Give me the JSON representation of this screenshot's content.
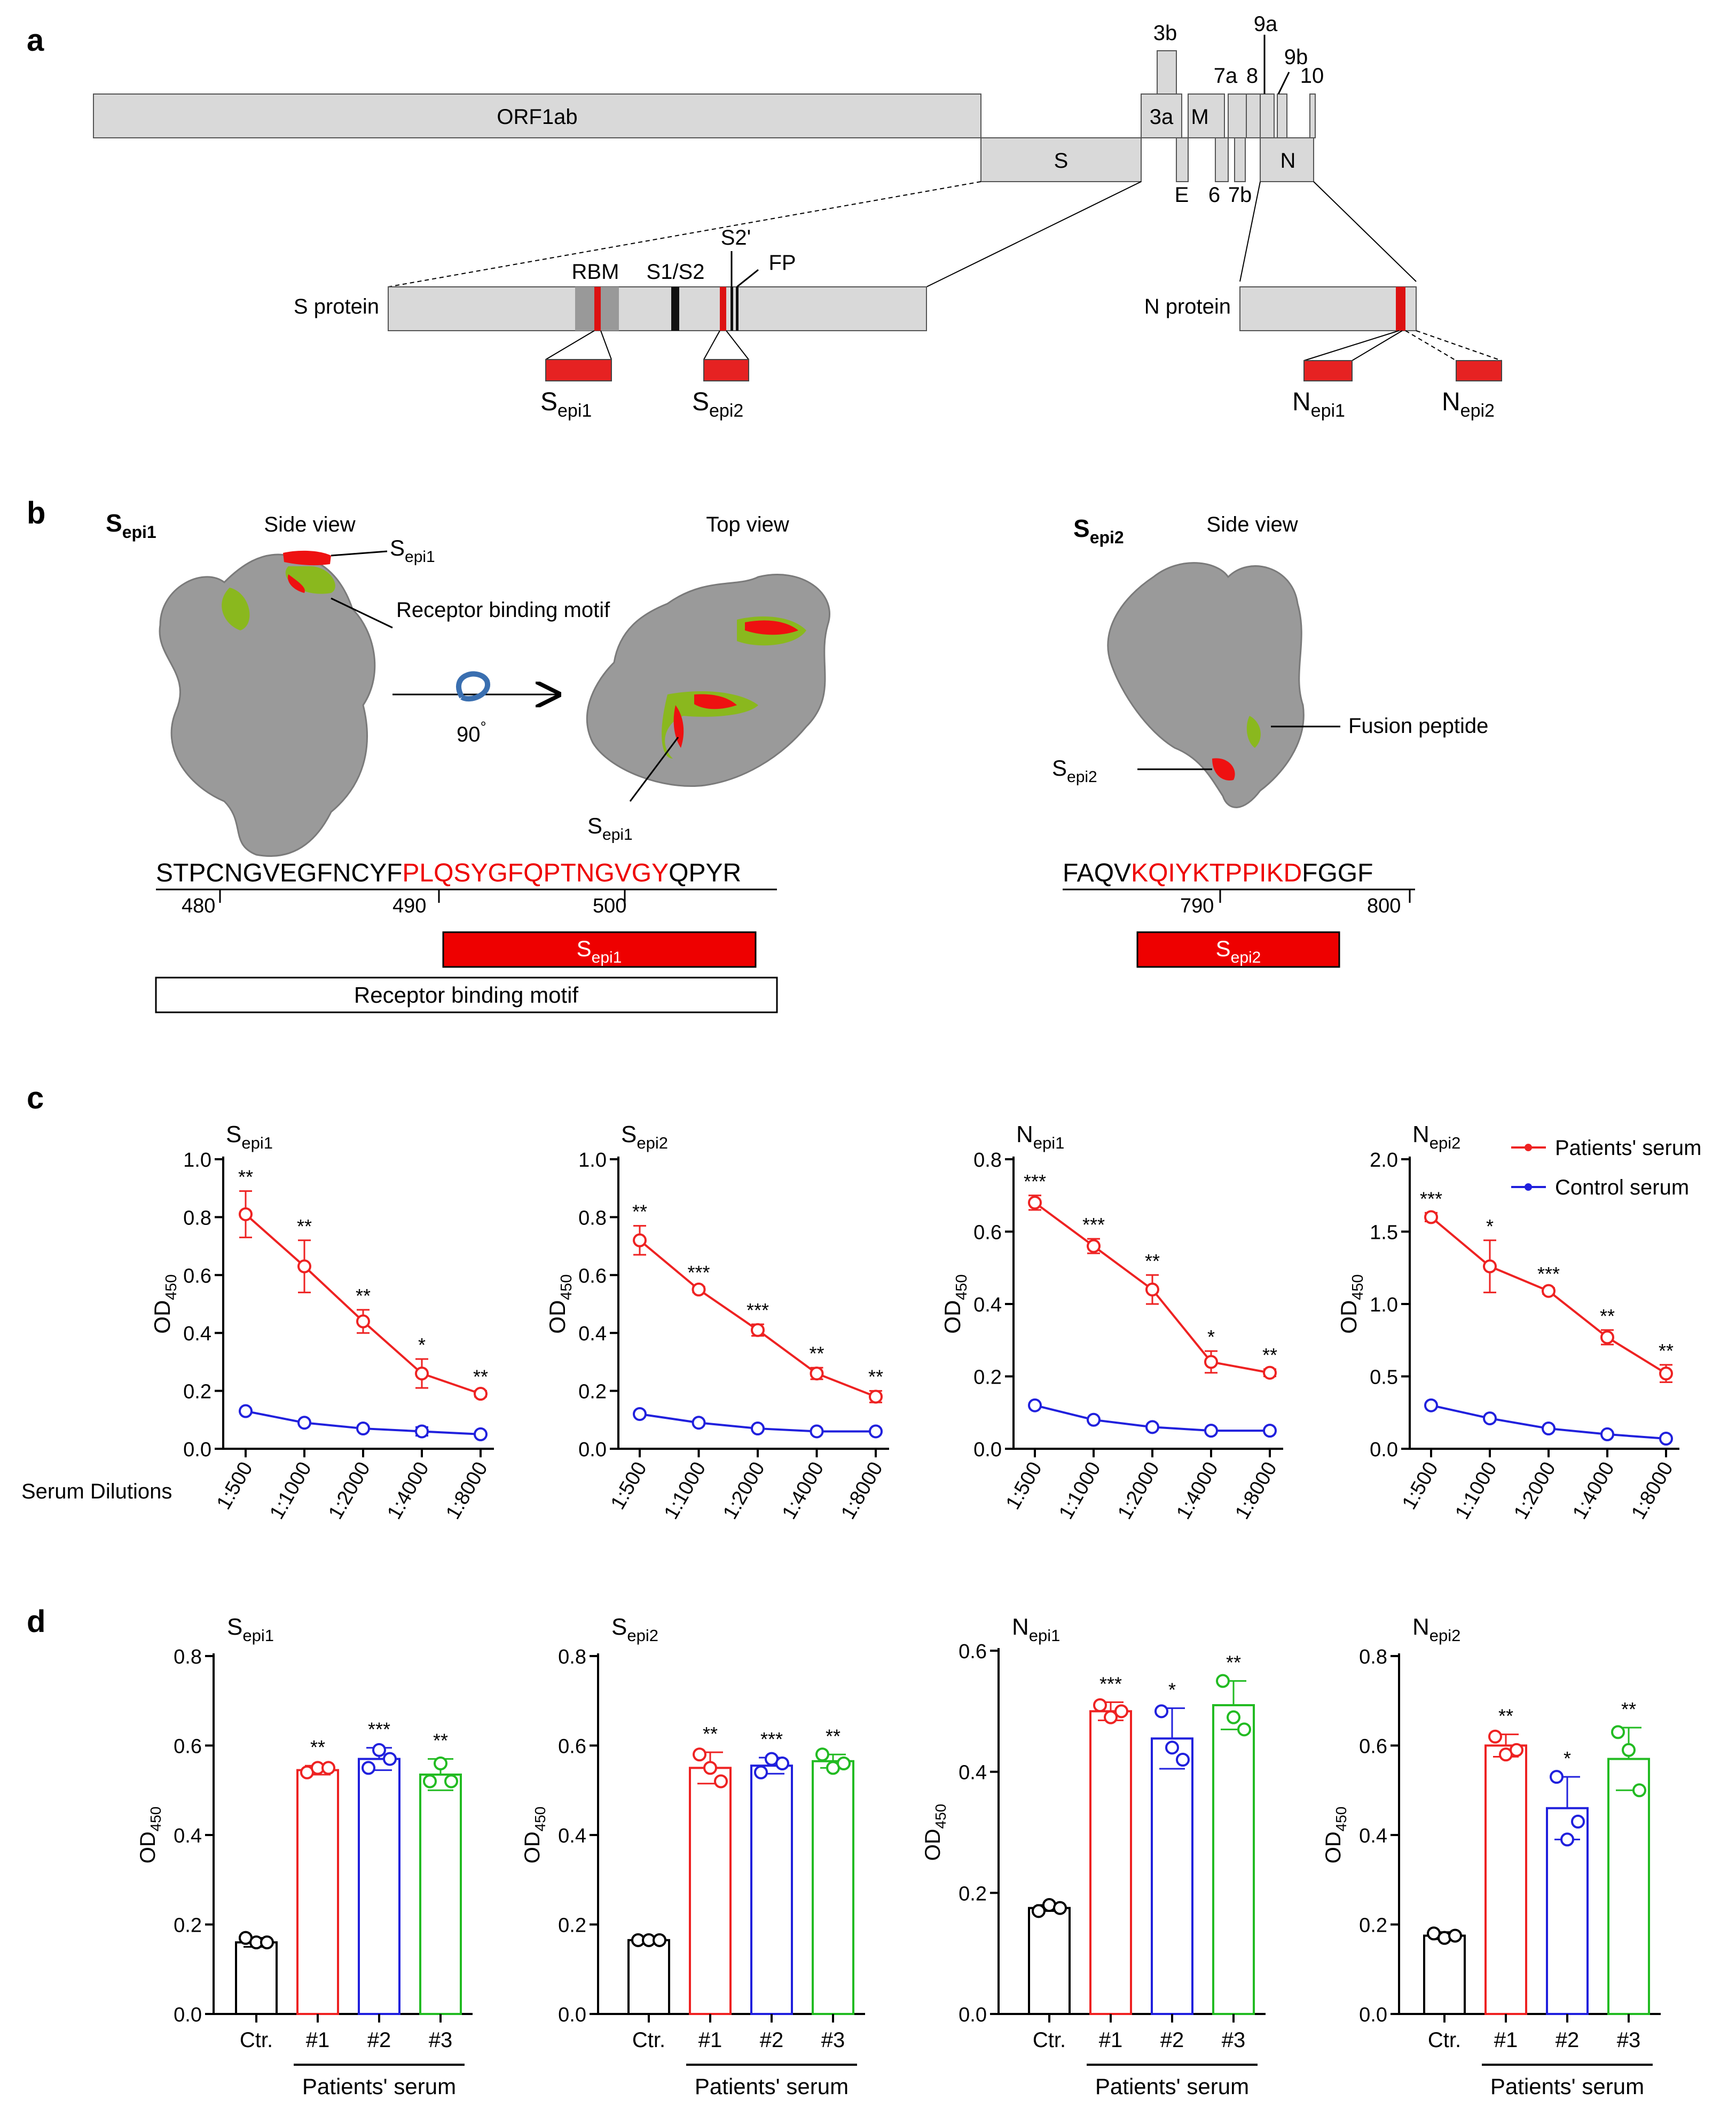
{
  "panel_labels": {
    "a": "a",
    "b": "b",
    "c": "c",
    "d": "d"
  },
  "genome": {
    "genes": [
      "ORF1ab",
      "S",
      "3a",
      "3b",
      "M",
      "7a",
      "8",
      "9a",
      "9b",
      "10",
      "E",
      "6",
      "7b",
      "N"
    ],
    "s_protein": {
      "label": "S protein",
      "features": [
        "RBM",
        "S1/S2",
        "S2'",
        "FP"
      ],
      "epitopes": [
        {
          "main": "S",
          "sub": "epi1"
        },
        {
          "main": "S",
          "sub": "epi2"
        }
      ]
    },
    "n_protein": {
      "label": "N protein",
      "epitopes": [
        {
          "main": "N",
          "sub": "epi1"
        },
        {
          "main": "N",
          "sub": "epi2"
        }
      ]
    }
  },
  "structure": {
    "sepi1_title": {
      "main": "S",
      "sub": "epi1"
    },
    "sepi2_title": {
      "main": "S",
      "sub": "epi2"
    },
    "side_view": "Side view",
    "top_view": "Top view",
    "rbm_label": "Receptor binding motif",
    "rotation": "90",
    "degree": "°",
    "fusion_peptide": "Fusion peptide",
    "callout_epi1": {
      "main": "S",
      "sub": "epi1"
    },
    "callout_epi2": {
      "main": "S",
      "sub": "epi2"
    }
  },
  "sequences": {
    "s1": {
      "prefix": "STPCNGVEGFNCYF",
      "epitope": "PLQSYGFQPTNGVGY",
      "suffix": "QPYR",
      "ticks": [
        "480",
        "490",
        "500"
      ],
      "epitope_bar": {
        "main": "S",
        "sub": "epi1"
      },
      "rbm_bar": "Receptor binding motif"
    },
    "s2": {
      "prefix": "FAQV",
      "epitope": "KQIYKTPPIKD",
      "suffix": "FGGF",
      "ticks": [
        "790",
        "800"
      ],
      "epitope_bar": {
        "main": "S",
        "sub": "epi2"
      }
    }
  },
  "colors": {
    "patients": "#ee2222",
    "control": "#2020dd",
    "p1": "#ee2222",
    "p2": "#2020dd",
    "p3": "#22bb22",
    "ctr": "#000000",
    "epitope": "#ee0000",
    "rbm_green": "#8ab81e",
    "protein_gray": "#9a9a9a"
  },
  "chart_data": [
    {
      "type": "line",
      "title": {
        "main": "S",
        "sub": "epi1"
      },
      "ylabel": {
        "main": "OD",
        "sub": "450"
      },
      "xlabel": "Serum Dilutions",
      "categories": [
        "1:500",
        "1:1000",
        "1:2000",
        "1:4000",
        "1:8000"
      ],
      "ylim": [
        0,
        1.0
      ],
      "yticks": [
        "0.0",
        "0.2",
        "0.4",
        "0.6",
        "0.8",
        "1.0"
      ],
      "series": [
        {
          "name": "Patients' serum",
          "values": [
            0.81,
            0.63,
            0.44,
            0.26,
            0.19
          ],
          "errors": [
            0.08,
            0.09,
            0.04,
            0.05,
            0.01
          ]
        },
        {
          "name": "Control serum",
          "values": [
            0.13,
            0.09,
            0.07,
            0.06,
            0.05
          ],
          "errors": [
            0.005,
            0.005,
            0.005,
            0.015,
            0.005
          ]
        }
      ],
      "significance": [
        "**",
        "**",
        "**",
        "*",
        "**"
      ]
    },
    {
      "type": "line",
      "title": {
        "main": "S",
        "sub": "epi2"
      },
      "ylabel": {
        "main": "OD",
        "sub": "450"
      },
      "categories": [
        "1:500",
        "1:1000",
        "1:2000",
        "1:4000",
        "1:8000"
      ],
      "ylim": [
        0,
        1.0
      ],
      "yticks": [
        "0.0",
        "0.2",
        "0.4",
        "0.6",
        "0.8",
        "1.0"
      ],
      "series": [
        {
          "name": "Patients' serum",
          "values": [
            0.72,
            0.55,
            0.41,
            0.26,
            0.18
          ],
          "errors": [
            0.05,
            0.01,
            0.02,
            0.02,
            0.02
          ]
        },
        {
          "name": "Control serum",
          "values": [
            0.12,
            0.09,
            0.07,
            0.06,
            0.06
          ],
          "errors": [
            0.005,
            0.005,
            0.005,
            0.005,
            0.005
          ]
        }
      ],
      "significance": [
        "**",
        "***",
        "***",
        "**",
        "**"
      ]
    },
    {
      "type": "line",
      "title": {
        "main": "N",
        "sub": "epi1"
      },
      "ylabel": {
        "main": "OD",
        "sub": "450"
      },
      "categories": [
        "1:500",
        "1:1000",
        "1:2000",
        "1:4000",
        "1:8000"
      ],
      "ylim": [
        0,
        0.8
      ],
      "yticks": [
        "0.0",
        "0.2",
        "0.4",
        "0.6",
        "0.8"
      ],
      "series": [
        {
          "name": "Patients' serum",
          "values": [
            0.68,
            0.56,
            0.44,
            0.24,
            0.21
          ],
          "errors": [
            0.02,
            0.02,
            0.04,
            0.03,
            0.01
          ]
        },
        {
          "name": "Control serum",
          "values": [
            0.12,
            0.08,
            0.06,
            0.05,
            0.05
          ],
          "errors": [
            0.005,
            0.005,
            0.005,
            0.005,
            0.005
          ]
        }
      ],
      "significance": [
        "***",
        "***",
        "**",
        "*",
        "**"
      ]
    },
    {
      "type": "line",
      "title": {
        "main": "N",
        "sub": "epi2"
      },
      "ylabel": {
        "main": "OD",
        "sub": "450"
      },
      "categories": [
        "1:500",
        "1:1000",
        "1:2000",
        "1:4000",
        "1:8000"
      ],
      "ylim": [
        0,
        2.0
      ],
      "yticks": [
        "0.0",
        "0.5",
        "1.0",
        "1.5",
        "2.0"
      ],
      "series": [
        {
          "name": "Patients' serum",
          "values": [
            1.6,
            1.26,
            1.09,
            0.77,
            0.52
          ],
          "errors": [
            0.03,
            0.18,
            0.02,
            0.05,
            0.06
          ]
        },
        {
          "name": "Control serum",
          "values": [
            0.3,
            0.21,
            0.14,
            0.1,
            0.07
          ],
          "errors": [
            0.01,
            0.01,
            0.01,
            0.01,
            0.01
          ]
        }
      ],
      "significance": [
        "***",
        "*",
        "***",
        "**",
        "**"
      ],
      "legend": [
        "Patients' serum",
        "Control serum"
      ]
    },
    {
      "type": "bar",
      "title": {
        "main": "S",
        "sub": "epi1"
      },
      "ylabel": {
        "main": "OD",
        "sub": "450"
      },
      "categories": [
        "Ctr.",
        "#1",
        "#2",
        "#3"
      ],
      "group_label": "Patients' serum",
      "ylim": [
        0,
        0.8
      ],
      "yticks": [
        "0.0",
        "0.2",
        "0.4",
        "0.6",
        "0.8"
      ],
      "values": [
        0.16,
        0.545,
        0.57,
        0.535
      ],
      "errors": [
        0.01,
        0.01,
        0.025,
        0.035
      ],
      "points": [
        [
          0.17,
          0.16,
          0.16
        ],
        [
          0.54,
          0.55,
          0.55
        ],
        [
          0.55,
          0.59,
          0.57
        ],
        [
          0.52,
          0.56,
          0.52
        ]
      ],
      "significance": [
        "",
        "**",
        "***",
        "**"
      ]
    },
    {
      "type": "bar",
      "title": {
        "main": "S",
        "sub": "epi2"
      },
      "ylabel": {
        "main": "OD",
        "sub": "450"
      },
      "categories": [
        "Ctr.",
        "#1",
        "#2",
        "#3"
      ],
      "group_label": "Patients' serum",
      "ylim": [
        0,
        0.8
      ],
      "yticks": [
        "0.0",
        "0.2",
        "0.4",
        "0.6",
        "0.8"
      ],
      "values": [
        0.165,
        0.55,
        0.555,
        0.565
      ],
      "errors": [
        0.003,
        0.035,
        0.018,
        0.015
      ],
      "points": [
        [
          0.165,
          0.165,
          0.165
        ],
        [
          0.58,
          0.55,
          0.52
        ],
        [
          0.54,
          0.57,
          0.56
        ],
        [
          0.58,
          0.55,
          0.56
        ]
      ],
      "significance": [
        "",
        "**",
        "***",
        "**"
      ]
    },
    {
      "type": "bar",
      "title": {
        "main": "N",
        "sub": "epi1"
      },
      "ylabel": {
        "main": "OD",
        "sub": "450"
      },
      "categories": [
        "Ctr.",
        "#1",
        "#2",
        "#3"
      ],
      "group_label": "Patients' serum",
      "ylim": [
        0,
        0.6
      ],
      "yticks": [
        "0.0",
        "0.2",
        "0.4",
        "0.6"
      ],
      "values": [
        0.175,
        0.5,
        0.455,
        0.51
      ],
      "errors": [
        0.005,
        0.015,
        0.05,
        0.04
      ],
      "points": [
        [
          0.17,
          0.18,
          0.175
        ],
        [
          0.51,
          0.49,
          0.5
        ],
        [
          0.5,
          0.44,
          0.42
        ],
        [
          0.55,
          0.49,
          0.47
        ]
      ],
      "significance": [
        "",
        "***",
        "*",
        "**"
      ]
    },
    {
      "type": "bar",
      "title": {
        "main": "N",
        "sub": "epi2"
      },
      "ylabel": {
        "main": "OD",
        "sub": "450"
      },
      "categories": [
        "Ctr.",
        "#1",
        "#2",
        "#3"
      ],
      "group_label": "Patients' serum",
      "ylim": [
        0,
        0.8
      ],
      "yticks": [
        "0.0",
        "0.2",
        "0.4",
        "0.6",
        "0.8"
      ],
      "values": [
        0.175,
        0.6,
        0.46,
        0.57
      ],
      "errors": [
        0.008,
        0.025,
        0.07,
        0.07
      ],
      "points": [
        [
          0.18,
          0.17,
          0.175
        ],
        [
          0.62,
          0.58,
          0.59
        ],
        [
          0.53,
          0.39,
          0.43
        ],
        [
          0.63,
          0.59,
          0.5
        ]
      ],
      "significance": [
        "",
        "**",
        "*",
        "**"
      ]
    }
  ]
}
